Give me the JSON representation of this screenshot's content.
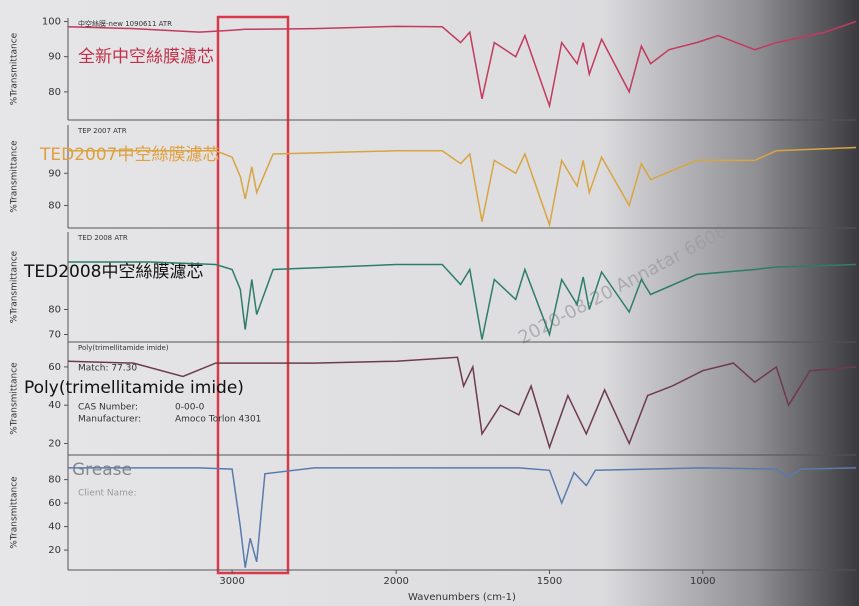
{
  "watermark": "2020-08-20 Annatar 6606",
  "chart_data": [
    {
      "type": "line",
      "header": "中空絲膜-new 1090611 ATR",
      "title": "全新中空絲膜濾芯",
      "ylabel": "%Transmittance",
      "xlim": [
        4000,
        500
      ],
      "xbreak": 2000,
      "ylim": [
        72,
        101
      ],
      "yticks": [
        100,
        90,
        80
      ],
      "color": "#c23a5c",
      "x": [
        4000,
        3600,
        3200,
        3000,
        2920,
        2500,
        2000,
        1850,
        1790,
        1760,
        1720,
        1680,
        1610,
        1580,
        1500,
        1460,
        1410,
        1390,
        1370,
        1330,
        1240,
        1200,
        1170,
        1110,
        1020,
        950,
        830,
        760,
        600,
        500
      ],
      "values": [
        98.5,
        98,
        97,
        97.5,
        97.8,
        98,
        98.6,
        98.5,
        94,
        97,
        78,
        94,
        90,
        96,
        76,
        94,
        88,
        94,
        85,
        95,
        80,
        93,
        88,
        92,
        94,
        96,
        92,
        94,
        97,
        100
      ]
    },
    {
      "type": "line",
      "header": "TEP 2007 ATR",
      "title": "TED2007中空絲膜濾芯",
      "ylabel": "%Transmittance",
      "xlim": [
        4000,
        500
      ],
      "xbreak": 2000,
      "ylim": [
        73,
        105
      ],
      "yticks": [
        90,
        80
      ],
      "color": "#d9a441",
      "x": [
        4000,
        3500,
        3100,
        3000,
        2950,
        2920,
        2880,
        2850,
        2750,
        2000,
        1850,
        1790,
        1760,
        1720,
        1680,
        1610,
        1580,
        1500,
        1460,
        1410,
        1390,
        1370,
        1330,
        1240,
        1200,
        1170,
        1020,
        830,
        760,
        500
      ],
      "values": [
        97,
        97,
        97,
        95,
        89,
        82,
        92,
        84,
        96,
        97,
        97,
        93,
        96,
        75,
        94,
        90,
        96,
        74,
        94,
        86,
        94,
        84,
        95,
        80,
        93,
        88,
        94,
        94,
        97,
        98
      ]
    },
    {
      "type": "line",
      "header": "TED 2008 ATR",
      "title": "TED2008中空絲膜濾芯",
      "ylabel": "%Transmittance",
      "xlim": [
        4000,
        500
      ],
      "xbreak": 2000,
      "ylim": [
        67,
        111
      ],
      "yticks": [
        80,
        70
      ],
      "color": "#2e7d6b",
      "x": [
        4000,
        3500,
        3100,
        3000,
        2950,
        2920,
        2880,
        2850,
        2750,
        2000,
        1850,
        1790,
        1760,
        1720,
        1680,
        1610,
        1580,
        1500,
        1460,
        1410,
        1390,
        1370,
        1330,
        1240,
        1200,
        1170,
        1020,
        830,
        760,
        500
      ],
      "values": [
        99,
        99,
        98,
        96,
        88,
        72,
        92,
        78,
        96,
        98,
        98,
        90,
        96,
        68,
        92,
        84,
        96,
        70,
        92,
        82,
        93,
        80,
        95,
        79,
        92,
        86,
        94,
        96,
        97,
        98
      ]
    },
    {
      "type": "line",
      "header": "Poly(trimellitamide imide)",
      "title": "Poly(trimellitamide imide)",
      "ylabel": "%Transmittance",
      "notes": [
        "Match: 77.30",
        "CAS Number:",
        "0-00-0",
        "Manufacturer:",
        "Amoco Torlon 4301"
      ],
      "xlim": [
        4000,
        500
      ],
      "xbreak": 2000,
      "ylim": [
        14,
        73
      ],
      "yticks": [
        60,
        40,
        20
      ],
      "color": "#6e3b4b",
      "x": [
        4000,
        3600,
        3300,
        3100,
        2500,
        2000,
        1800,
        1780,
        1750,
        1720,
        1660,
        1600,
        1560,
        1500,
        1440,
        1380,
        1320,
        1240,
        1180,
        1100,
        1000,
        900,
        830,
        760,
        720,
        650,
        500
      ],
      "values": [
        63,
        62,
        55,
        62,
        62,
        63,
        65,
        50,
        60,
        25,
        40,
        35,
        50,
        18,
        45,
        25,
        48,
        20,
        45,
        50,
        58,
        62,
        52,
        60,
        40,
        58,
        60
      ]
    },
    {
      "type": "line",
      "title": "Grease",
      "ylabel": "%Transmittance",
      "notes": [
        "Client Name:"
      ],
      "xlim": [
        4000,
        500
      ],
      "xbreak": 2000,
      "ylim": [
        3,
        101
      ],
      "yticks": [
        80,
        60,
        40,
        20
      ],
      "color": "#5a7aae",
      "xlabel": "Wavenumbers (cm-1)",
      "xticks": [
        3000,
        2000,
        1500,
        1000
      ],
      "x": [
        4000,
        3200,
        3000,
        2950,
        2920,
        2890,
        2870,
        2850,
        2800,
        2500,
        2000,
        1600,
        1500,
        1460,
        1420,
        1380,
        1350,
        1000,
        760,
        720,
        680,
        500
      ],
      "values": [
        90,
        90,
        89,
        40,
        5,
        30,
        20,
        10,
        85,
        90,
        90,
        90,
        88,
        60,
        86,
        75,
        88,
        90,
        89,
        82,
        89,
        90
      ]
    }
  ]
}
